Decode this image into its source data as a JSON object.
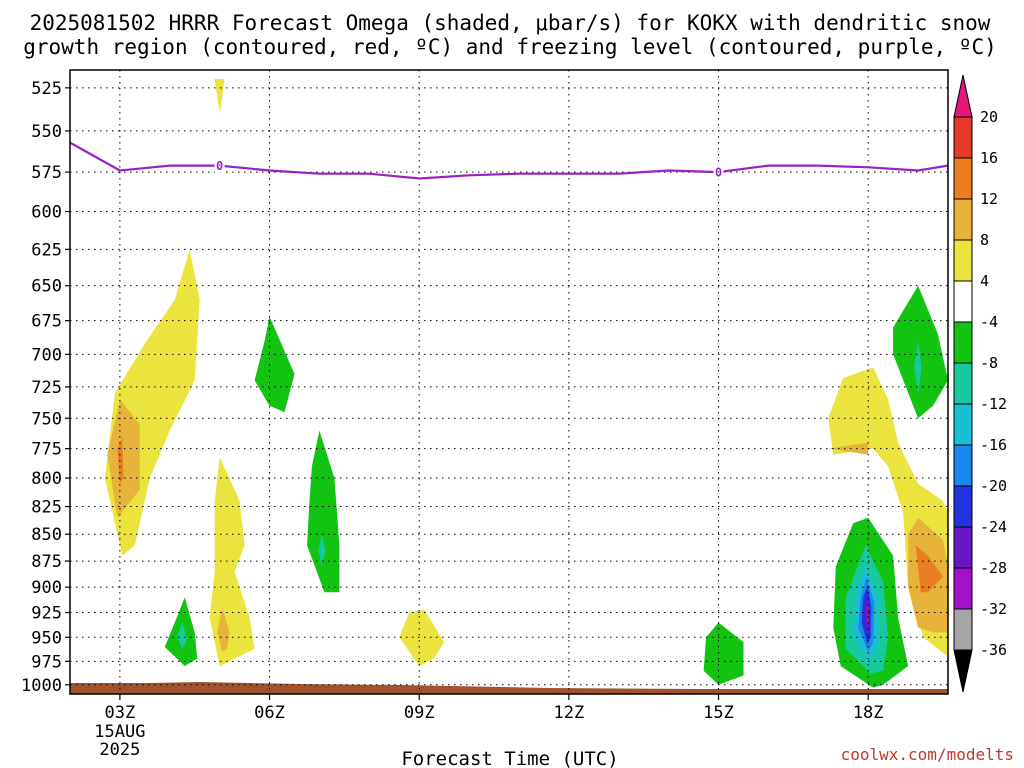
{
  "chart_data": {
    "type": "contour",
    "title_lines": [
      "2025081502 HRRR Forecast Omega (shaded, μbar/s) for KOKX with dendritic snow",
      "growth region (contoured, red, ºC) and freezing level (contoured, purple, ºC)"
    ],
    "xlabel": "Forecast Time (UTC)",
    "x_ticks": [
      "03Z",
      "06Z",
      "09Z",
      "12Z",
      "15Z",
      "18Z"
    ],
    "x_date": [
      "15AUG",
      "2025"
    ],
    "xlim": [
      2,
      19.6
    ],
    "y_ticks": [
      525,
      550,
      575,
      600,
      625,
      650,
      675,
      700,
      725,
      750,
      775,
      800,
      825,
      850,
      875,
      900,
      925,
      950,
      975,
      1000
    ],
    "y_axis": "pressure",
    "y_scale": "log",
    "ylim": [
      515,
      1010
    ],
    "grid": true,
    "freezing_level": {
      "value_label": "0",
      "label_times": [
        5,
        15
      ],
      "points": [
        [
          2,
          557
        ],
        [
          3,
          574
        ],
        [
          4,
          571
        ],
        [
          5,
          571
        ],
        [
          6,
          574
        ],
        [
          7,
          576
        ],
        [
          8,
          576
        ],
        [
          9,
          579
        ],
        [
          10,
          577
        ],
        [
          11,
          576
        ],
        [
          12,
          576
        ],
        [
          13,
          576
        ],
        [
          14,
          574
        ],
        [
          15,
          575
        ],
        [
          16,
          571
        ],
        [
          17,
          571
        ],
        [
          18,
          572
        ],
        [
          19,
          574
        ],
        [
          19.6,
          571
        ]
      ]
    },
    "omega_regions": [
      {
        "level": 4,
        "points": [
          [
            3.05,
            870
          ],
          [
            2.7,
            800
          ],
          [
            2.9,
            730
          ],
          [
            3.5,
            692
          ],
          [
            4.1,
            660
          ],
          [
            4.4,
            625
          ],
          [
            4.6,
            660
          ],
          [
            4.5,
            720
          ],
          [
            4.0,
            760
          ],
          [
            3.6,
            800
          ],
          [
            3.3,
            860
          ]
        ]
      },
      {
        "level": 8,
        "points": [
          [
            2.95,
            835
          ],
          [
            2.75,
            780
          ],
          [
            3.0,
            735
          ],
          [
            3.4,
            755
          ],
          [
            3.4,
            810
          ]
        ]
      },
      {
        "level": 12,
        "points": [
          [
            3.0,
            805
          ],
          [
            2.95,
            775
          ],
          [
            3.05,
            765
          ],
          [
            3.07,
            800
          ]
        ]
      },
      {
        "level": 4,
        "points": [
          [
            5.0,
            980
          ],
          [
            4.8,
            930
          ],
          [
            4.9,
            885
          ],
          [
            4.9,
            820
          ],
          [
            5.0,
            782
          ],
          [
            5.4,
            820
          ],
          [
            5.5,
            860
          ],
          [
            5.3,
            885
          ],
          [
            5.6,
            930
          ],
          [
            5.7,
            962
          ],
          [
            5.3,
            972
          ]
        ]
      },
      {
        "level": 8,
        "points": [
          [
            5.05,
            965
          ],
          [
            4.95,
            945
          ],
          [
            5.05,
            920
          ],
          [
            5.2,
            945
          ],
          [
            5.15,
            962
          ]
        ]
      },
      {
        "level": 4,
        "points": [
          [
            5.0,
            540
          ],
          [
            4.9,
            520
          ],
          [
            5.1,
            520
          ]
        ]
      },
      {
        "level": -4,
        "points": [
          [
            4.3,
            980
          ],
          [
            3.9,
            960
          ],
          [
            4.1,
            935
          ],
          [
            4.3,
            910
          ],
          [
            4.5,
            945
          ],
          [
            4.55,
            972
          ]
        ]
      },
      {
        "level": -8,
        "points": [
          [
            4.25,
            962
          ],
          [
            4.15,
            950
          ],
          [
            4.25,
            935
          ],
          [
            4.35,
            952
          ]
        ]
      },
      {
        "level": -4,
        "points": [
          [
            6.0,
            740
          ],
          [
            5.7,
            720
          ],
          [
            5.9,
            690
          ],
          [
            6.0,
            672
          ],
          [
            6.5,
            715
          ],
          [
            6.3,
            745
          ]
        ]
      },
      {
        "level": -4,
        "points": [
          [
            7.1,
            905
          ],
          [
            6.75,
            860
          ],
          [
            6.8,
            820
          ],
          [
            6.85,
            790
          ],
          [
            7.0,
            760
          ],
          [
            7.3,
            800
          ],
          [
            7.4,
            860
          ],
          [
            7.4,
            905
          ]
        ]
      },
      {
        "level": -8,
        "points": [
          [
            7.05,
            880
          ],
          [
            6.98,
            865
          ],
          [
            7.05,
            850
          ],
          [
            7.12,
            865
          ]
        ]
      },
      {
        "level": 4,
        "points": [
          [
            9.0,
            980
          ],
          [
            8.6,
            950
          ],
          [
            8.8,
            925
          ],
          [
            9.1,
            922
          ],
          [
            9.5,
            955
          ],
          [
            9.3,
            972
          ]
        ]
      },
      {
        "level": -4,
        "points": [
          [
            15.0,
            1000
          ],
          [
            14.7,
            985
          ],
          [
            14.75,
            950
          ],
          [
            15.0,
            935
          ],
          [
            15.5,
            955
          ],
          [
            15.5,
            990
          ]
        ]
      },
      {
        "level": 4,
        "points": [
          [
            17.3,
            780
          ],
          [
            17.2,
            750
          ],
          [
            17.5,
            718
          ],
          [
            18.1,
            710
          ],
          [
            18.4,
            735
          ],
          [
            18.6,
            770
          ],
          [
            19.0,
            805
          ],
          [
            19.5,
            820
          ],
          [
            19.6,
            830
          ],
          [
            19.6,
            970
          ],
          [
            19.1,
            950
          ],
          [
            18.8,
            900
          ],
          [
            18.7,
            830
          ],
          [
            18.4,
            790
          ],
          [
            18.1,
            775
          ]
        ]
      },
      {
        "level": 8,
        "points": [
          [
            17.2,
            775
          ],
          [
            18.0,
            770
          ],
          [
            18.0,
            780
          ]
        ]
      },
      {
        "level": 8,
        "points": [
          [
            19.0,
            940
          ],
          [
            18.8,
            900
          ],
          [
            18.8,
            850
          ],
          [
            19.0,
            835
          ],
          [
            19.5,
            855
          ],
          [
            19.6,
            880
          ],
          [
            19.6,
            945
          ],
          [
            19.3,
            945
          ]
        ]
      },
      {
        "level": 12,
        "points": [
          [
            19.05,
            905
          ],
          [
            18.95,
            860
          ],
          [
            19.2,
            870
          ],
          [
            19.5,
            890
          ],
          [
            19.2,
            905
          ]
        ]
      },
      {
        "level": -4,
        "points": [
          [
            18.1,
            1003
          ],
          [
            17.45,
            980
          ],
          [
            17.3,
            940
          ],
          [
            17.35,
            880
          ],
          [
            17.7,
            840
          ],
          [
            18.0,
            835
          ],
          [
            18.5,
            870
          ],
          [
            18.6,
            930
          ],
          [
            18.8,
            980
          ],
          [
            18.3,
            1000
          ]
        ]
      },
      {
        "level": -8,
        "points": [
          [
            18.05,
            988
          ],
          [
            17.55,
            962
          ],
          [
            17.55,
            910
          ],
          [
            17.95,
            860
          ],
          [
            18.3,
            895
          ],
          [
            18.4,
            950
          ],
          [
            18.3,
            985
          ]
        ]
      },
      {
        "level": -12,
        "points": [
          [
            18.0,
            975
          ],
          [
            17.7,
            950
          ],
          [
            17.75,
            905
          ],
          [
            17.95,
            880
          ],
          [
            18.2,
            910
          ],
          [
            18.2,
            960
          ]
        ]
      },
      {
        "level": -16,
        "points": [
          [
            18.0,
            965
          ],
          [
            17.8,
            940
          ],
          [
            17.85,
            910
          ],
          [
            17.97,
            890
          ],
          [
            18.12,
            915
          ],
          [
            18.1,
            955
          ]
        ]
      },
      {
        "level": -20,
        "points": [
          [
            17.98,
            957
          ],
          [
            17.87,
            935
          ],
          [
            17.9,
            910
          ],
          [
            17.99,
            898
          ],
          [
            18.06,
            920
          ],
          [
            18.05,
            950
          ]
        ]
      },
      {
        "level": -24,
        "points": [
          [
            17.97,
            945
          ],
          [
            17.92,
            925
          ],
          [
            17.98,
            908
          ],
          [
            18.03,
            925
          ],
          [
            18.02,
            945
          ]
        ]
      },
      {
        "level": -28,
        "points": [
          [
            17.98,
            935
          ],
          [
            17.96,
            920
          ],
          [
            18.0,
            915
          ],
          [
            18.01,
            935
          ]
        ]
      },
      {
        "level": -4,
        "points": [
          [
            19.0,
            750
          ],
          [
            18.5,
            700
          ],
          [
            18.5,
            680
          ],
          [
            19.0,
            650
          ],
          [
            19.4,
            685
          ],
          [
            19.6,
            720
          ],
          [
            19.3,
            740
          ]
        ]
      },
      {
        "level": -8,
        "points": [
          [
            19.0,
            730
          ],
          [
            18.92,
            710
          ],
          [
            19.0,
            690
          ],
          [
            19.07,
            710
          ]
        ]
      }
    ],
    "colorbar": {
      "levels": [
        20,
        16,
        12,
        8,
        4,
        -4,
        -8,
        -12,
        -16,
        -20,
        -24,
        -28,
        -32,
        -36
      ],
      "colors": [
        "#e6177a",
        "#e6392c",
        "#ec7e22",
        "#e8b33a",
        "#ebe43e",
        "#ffffff",
        "#12c312",
        "#18c9a0",
        "#18bfd2",
        "#1a86ee",
        "#2233e0",
        "#6a15c6",
        "#a312c8",
        "#a6a6a6",
        "#000000"
      ]
    },
    "terrain_color": "#a0522d",
    "freezing_level_color": "#9b1fc2"
  },
  "credit": "coolwx.com/modelts"
}
